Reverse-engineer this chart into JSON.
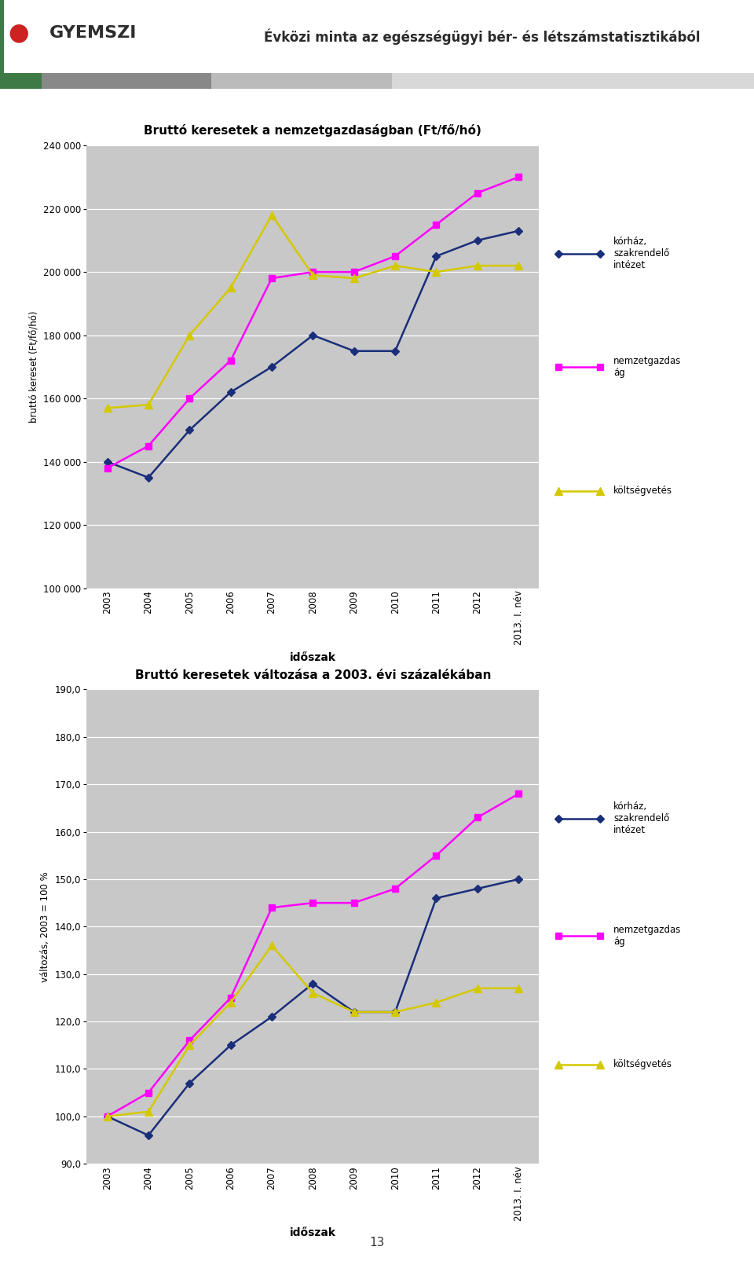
{
  "header_title": "Évközi minta az egészségügyi bér- és létszámstatisztikából",
  "page_number": "13",
  "chart1": {
    "title": "Bruttó keresetek a nemzetgazdaságban (Ft/fő/hó)",
    "ylabel": "bruttó kereset (Ft/fő/hó)",
    "xlabel": "időszak",
    "ylim": [
      100000,
      240000
    ],
    "yticks": [
      100000,
      120000,
      140000,
      160000,
      180000,
      200000,
      220000,
      240000
    ],
    "ytick_labels": [
      "100 000",
      "120 000",
      "140 000",
      "160 000",
      "180 000",
      "200 000",
      "220 000",
      "240 000"
    ],
    "x_labels": [
      "2003",
      "2004",
      "2005",
      "2006",
      "2007",
      "2008",
      "2009",
      "2010",
      "2011",
      "2012",
      "2013. I. név"
    ],
    "korhaz": [
      140000,
      135000,
      150000,
      162000,
      170000,
      180000,
      175000,
      175000,
      205000,
      210000,
      213000
    ],
    "nemzetgazd": [
      138000,
      145000,
      160000,
      172000,
      198000,
      200000,
      200000,
      205000,
      215000,
      225000,
      230000
    ],
    "koltsegvetes": [
      157000,
      158000,
      180000,
      195000,
      218000,
      199000,
      198000,
      202000,
      200000,
      202000,
      202000
    ],
    "korhaz_color": "#1a2e7a",
    "nemzetgazd_color": "#ff00ff",
    "koltsegvetes_color": "#d4c800",
    "legend_korhaz": "kórház,\nszakrendelő\nintézet",
    "legend_nemz": "nemzetgazdas\nág",
    "legend_kolts": "költségvetés"
  },
  "chart2": {
    "title": "Bruttó keresetek változása a 2003. évi százalékában",
    "ylabel": "változás, 2003 = 100 %",
    "xlabel": "időszak",
    "ylim": [
      90.0,
      190.0
    ],
    "yticks": [
      90.0,
      100.0,
      110.0,
      120.0,
      130.0,
      140.0,
      150.0,
      160.0,
      170.0,
      180.0,
      190.0
    ],
    "ytick_labels": [
      "90,0",
      "100,0",
      "110,0",
      "120,0",
      "130,0",
      "140,0",
      "150,0",
      "160,0",
      "170,0",
      "180,0",
      "190,0"
    ],
    "x_labels": [
      "2003",
      "2004",
      "2005",
      "2006",
      "2007",
      "2008",
      "2009",
      "2010",
      "2011",
      "2012",
      "2013. I. név"
    ],
    "korhaz": [
      100.0,
      96.0,
      107.0,
      115.0,
      121.0,
      128.0,
      122.0,
      122.0,
      146.0,
      148.0,
      150.0
    ],
    "nemzetgazd": [
      100.0,
      105.0,
      116.0,
      125.0,
      144.0,
      145.0,
      145.0,
      148.0,
      155.0,
      163.0,
      168.0
    ],
    "koltsegvetes": [
      100.0,
      101.0,
      115.0,
      124.0,
      136.0,
      126.0,
      122.0,
      122.0,
      124.0,
      127.0,
      127.0
    ],
    "korhaz_color": "#1a2e7a",
    "nemzetgazd_color": "#ff00ff",
    "koltsegvetes_color": "#d4c800",
    "legend_korhaz": "kórház,\nszakrendelő\nintézet",
    "legend_nemz": "nemzetgazdas\nág",
    "legend_kolts": "költségvetés"
  }
}
